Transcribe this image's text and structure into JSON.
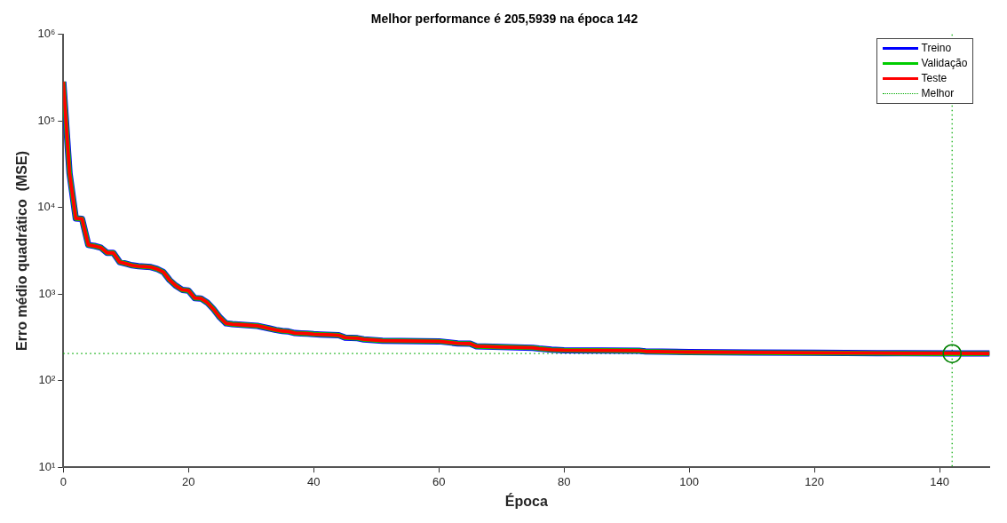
{
  "chart_data": {
    "type": "line",
    "title": "Melhor performance é 205,5939 na época 142",
    "xlabel": "Época",
    "ylabel": "Erro médio quadrático  (MSE)",
    "x": [
      0,
      1,
      2,
      3,
      4,
      5,
      6,
      7,
      8,
      9,
      10,
      11,
      12,
      13,
      14,
      15,
      16,
      17,
      18,
      19,
      20,
      21,
      22,
      23,
      24,
      25,
      26,
      27,
      28,
      29,
      30,
      31,
      32,
      33,
      34,
      35,
      36,
      37,
      38,
      39,
      40,
      41,
      42,
      43,
      44,
      45,
      46,
      47,
      48,
      49,
      50,
      51,
      60,
      62,
      63,
      65,
      66,
      70,
      75,
      76,
      78,
      80,
      92,
      93,
      100,
      110,
      120,
      130,
      142,
      148
    ],
    "series": [
      {
        "name": "Treino",
        "color": "#0000ff",
        "values": [
          285000,
          25000,
          7500,
          7400,
          3700,
          3600,
          3450,
          3000,
          3000,
          2350,
          2250,
          2150,
          2100,
          2080,
          2050,
          1950,
          1800,
          1450,
          1250,
          1120,
          1100,
          900,
          890,
          800,
          670,
          540,
          460,
          450,
          445,
          440,
          435,
          430,
          415,
          400,
          385,
          375,
          370,
          355,
          352,
          350,
          345,
          342,
          340,
          338,
          335,
          315,
          312,
          310,
          300,
          297,
          293,
          290,
          285,
          275,
          270,
          268,
          250,
          245,
          240,
          235,
          228,
          225,
          222,
          218,
          214,
          212,
          210,
          208,
          207,
          206
        ]
      },
      {
        "name": "Validação",
        "color": "#00cc00",
        "values": [
          285000,
          25000,
          7500,
          7400,
          3700,
          3600,
          3450,
          3000,
          3000,
          2350,
          2250,
          2150,
          2100,
          2080,
          2050,
          1950,
          1800,
          1450,
          1250,
          1120,
          1100,
          900,
          890,
          800,
          670,
          540,
          460,
          450,
          445,
          440,
          435,
          430,
          415,
          400,
          385,
          375,
          370,
          355,
          352,
          350,
          345,
          342,
          340,
          338,
          335,
          315,
          312,
          310,
          300,
          297,
          293,
          290,
          285,
          275,
          270,
          268,
          250,
          245,
          240,
          235,
          228,
          225,
          222,
          218,
          213,
          211,
          209,
          207,
          205.5939,
          206
        ]
      },
      {
        "name": "Teste",
        "color": "#ff0000",
        "values": [
          285000,
          25000,
          7500,
          7400,
          3700,
          3600,
          3450,
          3000,
          3000,
          2350,
          2250,
          2150,
          2100,
          2080,
          2050,
          1950,
          1800,
          1450,
          1250,
          1120,
          1100,
          900,
          890,
          800,
          670,
          540,
          460,
          450,
          445,
          440,
          435,
          430,
          415,
          400,
          385,
          375,
          370,
          355,
          352,
          350,
          345,
          342,
          340,
          338,
          335,
          315,
          312,
          310,
          300,
          297,
          293,
          290,
          285,
          275,
          270,
          268,
          250,
          245,
          240,
          235,
          228,
          225,
          222,
          218,
          214,
          212,
          210,
          208,
          207,
          206
        ]
      },
      {
        "type": "scatter",
        "color": "#008000",
        "marker": "circle",
        "x": [
          142
        ],
        "values": [
          205.5939
        ]
      }
    ],
    "xlim": [
      0,
      148
    ],
    "xticks": [
      0,
      20,
      40,
      60,
      80,
      100,
      120,
      140
    ],
    "ylim": [
      10,
      1000000
    ],
    "yticks": [
      {
        "value": 10,
        "label": "10¹"
      },
      {
        "value": 100,
        "label": "10²"
      },
      {
        "value": 1000,
        "label": "10³"
      },
      {
        "value": 10000,
        "label": "10⁴"
      },
      {
        "value": 100000,
        "label": "10⁵"
      },
      {
        "value": 1000000,
        "label": "10⁶"
      }
    ],
    "log": "y",
    "marker": "none",
    "line_style": "solid",
    "legend": "top right",
    "ref_lines": [
      {
        "axis": "y",
        "value": 205.5939,
        "label": "Melhor",
        "color": "#00aa00",
        "line_style": "dotted"
      },
      {
        "axis": "x",
        "value": 142,
        "color": "#00aa00",
        "line_style": "dotted"
      }
    ]
  }
}
